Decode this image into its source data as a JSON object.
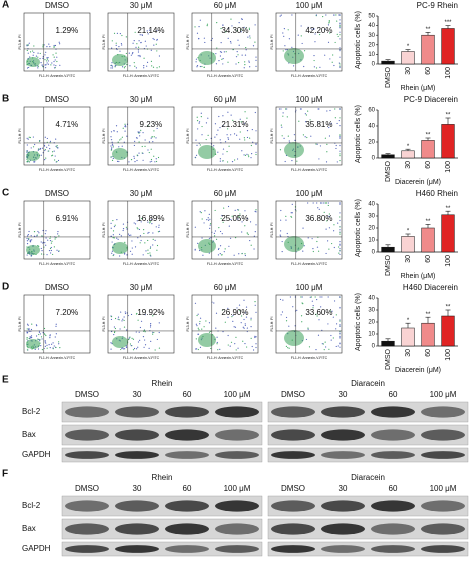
{
  "flow_axes": {
    "x_label": "FL1-H: Annexin-V-FITC",
    "y_label": "FL3-H: PI"
  },
  "flow_panels": [
    {
      "letter": "A",
      "conditions": [
        "DMSO",
        "30 μM",
        "60 μM",
        "100 μM"
      ],
      "percentages": [
        "1.29%",
        "21.14%",
        "34.30%",
        "42.20%"
      ]
    },
    {
      "letter": "B",
      "conditions": [
        "DMSO",
        "30 μM",
        "60 μM",
        "100 μM"
      ],
      "percentages": [
        "4.71%",
        "9.23%",
        "21.31%",
        "35.81%"
      ]
    },
    {
      "letter": "C",
      "conditions": [
        "DMSO",
        "30 μM",
        "60 μM",
        "100 μM"
      ],
      "percentages": [
        "6.91%",
        "16.89%",
        "25.05%",
        "36.80%"
      ]
    },
    {
      "letter": "D",
      "conditions": [
        "DMSO",
        "30 μM",
        "60 μM",
        "100 μM"
      ],
      "percentages": [
        "7.20%",
        "19.92%",
        "26.90%",
        "33.60%"
      ]
    }
  ],
  "chart_data": [
    {
      "type": "bar",
      "title": "PC-9 Rhein",
      "y_label": "Apoptotic cells (%)",
      "x_label": "Rhein (μM)",
      "categories": [
        "DMSO",
        "30",
        "60",
        "100"
      ],
      "values": [
        3,
        13,
        30,
        37
      ],
      "errors": [
        1.5,
        2,
        3,
        3
      ],
      "annotations": [
        null,
        "*",
        "**",
        "***"
      ],
      "colors": [
        "#111111",
        "#f9d3d3",
        "#f08a8a",
        "#e02424"
      ],
      "ylim": [
        0,
        50
      ],
      "yticks": [
        0,
        10,
        20,
        30,
        40,
        50
      ]
    },
    {
      "type": "bar",
      "title": "PC-9 Diacerein",
      "y_label": "Apoptotic cells (%)",
      "x_label": "Diacerein (μM)",
      "categories": [
        "DMSO",
        "30",
        "60",
        "100"
      ],
      "values": [
        4,
        9,
        22,
        42
      ],
      "errors": [
        1.5,
        2,
        3,
        8
      ],
      "annotations": [
        null,
        "*",
        "**",
        "**"
      ],
      "colors": [
        "#111111",
        "#f9d3d3",
        "#f08a8a",
        "#e02424"
      ],
      "ylim": [
        0,
        60
      ],
      "yticks": [
        0,
        20,
        40,
        60
      ]
    },
    {
      "type": "bar",
      "title": "H460 Rhein",
      "y_label": "Apoptotic cells (%)",
      "x_label": "Rhein (μM)",
      "categories": [
        "DMSO",
        "30",
        "60",
        "100"
      ],
      "values": [
        4,
        13,
        20,
        31
      ],
      "errors": [
        2,
        2,
        3,
        3
      ],
      "annotations": [
        null,
        "*",
        "**",
        "**"
      ],
      "colors": [
        "#111111",
        "#f9d3d3",
        "#f08a8a",
        "#e02424"
      ],
      "ylim": [
        0,
        40
      ],
      "yticks": [
        0,
        10,
        20,
        30,
        40
      ]
    },
    {
      "type": "bar",
      "title": "H460 Diacerein",
      "y_label": "Apoptotic cells (%)",
      "x_label": "Diacerein (μM)",
      "categories": [
        "DMSO",
        "30",
        "60",
        "100"
      ],
      "values": [
        4,
        15,
        19,
        25
      ],
      "errors": [
        2,
        4,
        5,
        5
      ],
      "annotations": [
        null,
        "*",
        "**",
        "**"
      ],
      "colors": [
        "#111111",
        "#f9d3d3",
        "#f08a8a",
        "#e02424"
      ],
      "ylim": [
        0,
        40
      ],
      "yticks": [
        0,
        10,
        20,
        30,
        40
      ]
    }
  ],
  "blots": [
    {
      "letter": "E",
      "groups": [
        "Rhein",
        "Diaracein"
      ],
      "lanes": [
        "DMSO",
        "30",
        "60",
        "100 μM"
      ],
      "proteins": [
        "Bcl-2",
        "Bax",
        "GAPDH"
      ]
    },
    {
      "letter": "F",
      "groups": [
        "Rhein",
        "Diaracein"
      ],
      "lanes": [
        "DMSO",
        "30",
        "60",
        "100 μM"
      ],
      "proteins": [
        "Bcl-2",
        "Bax",
        "GAPDH"
      ]
    }
  ]
}
